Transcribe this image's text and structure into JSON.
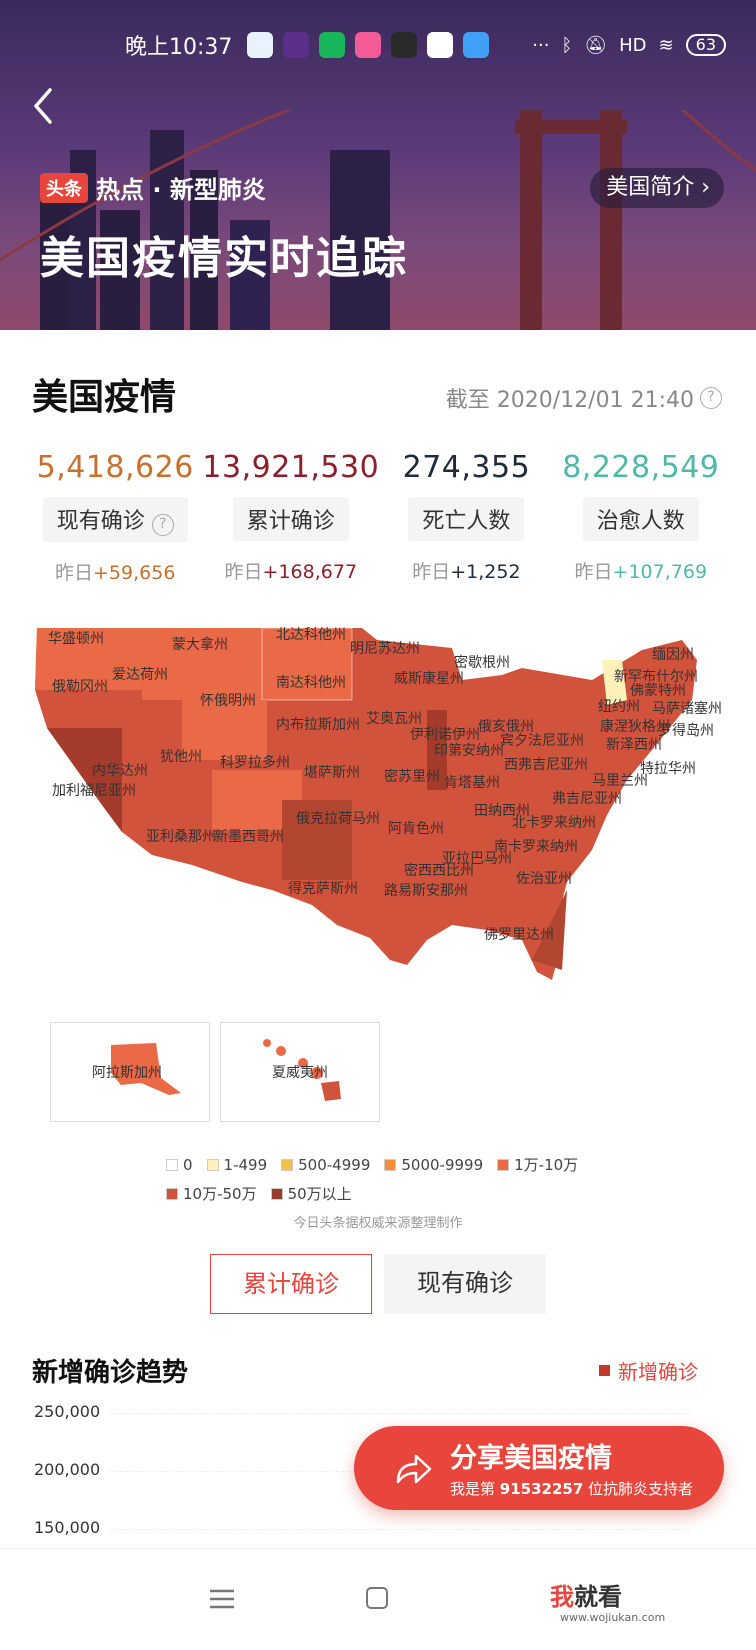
{
  "status": {
    "time": "晚上10:37",
    "network": "HD",
    "battery": "63"
  },
  "hero": {
    "tag_logo": "头条",
    "tag_text": "热点 · 新型肺炎",
    "intro_button": "美国简介",
    "title": "美国疫情实时追踪"
  },
  "section": {
    "title": "美国疫情",
    "as_of": "截至 2020/12/01 21:40"
  },
  "stats": [
    {
      "value": "5,418,626",
      "label": "现有确诊",
      "yesterday_prefix": "昨日",
      "yesterday_delta": "+59,656",
      "color": "#c8702e",
      "help": true
    },
    {
      "value": "13,921,530",
      "label": "累计确诊",
      "yesterday_prefix": "昨日",
      "yesterday_delta": "+168,677",
      "color": "#8b1f2a"
    },
    {
      "value": "274,355",
      "label": "死亡人数",
      "yesterday_prefix": "昨日",
      "yesterday_delta": "+1,252",
      "color": "#1f2b3a"
    },
    {
      "value": "8,228,549",
      "label": "治愈人数",
      "yesterday_prefix": "昨日",
      "yesterday_delta": "+107,769",
      "color": "#4fb8a8"
    }
  ],
  "map": {
    "labels": [
      "华盛顿州",
      "蒙大拿州",
      "北达科他州",
      "明尼苏达州",
      "缅因州",
      "俄勒冈州",
      "爱达荷州",
      "南达科他州",
      "威斯康星州",
      "密歇根州",
      "新罕布什尔州",
      "佛蒙特州",
      "怀俄明州",
      "纽约州",
      "马萨诸塞州",
      "内布拉斯加州",
      "艾奥瓦州",
      "伊利诺伊州",
      "俄亥俄州",
      "康涅狄格州",
      "罗得岛州",
      "内华达州",
      "犹他州",
      "宾夕法尼亚州",
      "新泽西州",
      "加利福尼亚州",
      "科罗拉多州",
      "堪萨斯州",
      "密苏里州",
      "印第安纳州",
      "西弗吉尼亚州",
      "特拉华州",
      "肯塔基州",
      "马里兰州",
      "弗吉尼亚州",
      "田纳西州",
      "北卡罗来纳州",
      "亚利桑那州",
      "新墨西哥州",
      "俄克拉荷马州",
      "阿肯色州",
      "南卡罗来纳州",
      "亚拉巴马州",
      "密西西比州",
      "佐治亚州",
      "得克萨斯州",
      "路易斯安那州",
      "佛罗里达州"
    ],
    "insets": [
      "阿拉斯加州",
      "夏威夷州"
    ]
  },
  "legend": {
    "row1": [
      {
        "label": "0",
        "color": "#ffffff"
      },
      {
        "label": "1-499",
        "color": "#fdf0b8"
      },
      {
        "label": "500-4999",
        "color": "#f3c04a"
      },
      {
        "label": "5000-9999",
        "color": "#f0903a"
      },
      {
        "label": "1万-10万",
        "color": "#ea6a48"
      }
    ],
    "row2": [
      {
        "label": "10万-50万",
        "color": "#d2533c"
      },
      {
        "label": "50万以上",
        "color": "#9a3a2a"
      }
    ]
  },
  "source": "今日头条据权威来源整理制作",
  "tabs": [
    {
      "label": "累计确诊",
      "active": true
    },
    {
      "label": "现有确诊",
      "active": false
    }
  ],
  "trend": {
    "title": "新增确诊趋势",
    "legend": "新增确诊",
    "yticks": [
      "250,000",
      "200,000",
      "150,000"
    ]
  },
  "share": {
    "title": "分享美国疫情",
    "line_prefix": "我是第 ",
    "supporter_number": "91532257",
    "line_suffix": " 位抗肺炎支持者"
  },
  "watermark": {
    "w1": "我",
    "w2": "就看",
    "url": "www.wojiukan.com"
  }
}
